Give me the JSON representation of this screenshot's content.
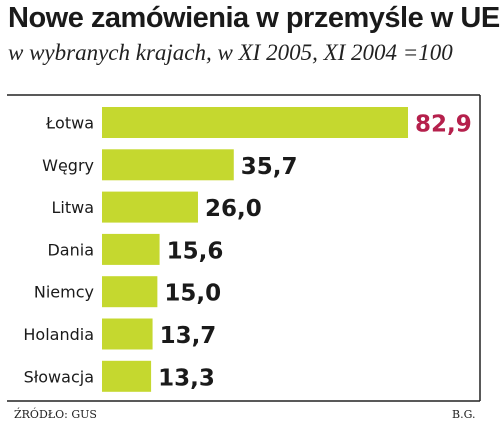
{
  "colors": {
    "bar": "#c5d82f",
    "highlight_value": "#b5204c",
    "value_text": "#1a1a1a",
    "label_text": "#1a1a1a",
    "frame": "#222222"
  },
  "chart_data": {
    "type": "bar",
    "orientation": "horizontal",
    "title": "Nowe zamówienia w przemyśle w UE",
    "subtitle": "w wybranych krajach, w XI 2005, XI 2004 =100",
    "categories": [
      "Łotwa",
      "Węgry",
      "Litwa",
      "Dania",
      "Niemcy",
      "Holandia",
      "Słowacja"
    ],
    "values": [
      82.9,
      35.7,
      26.0,
      15.6,
      15.0,
      13.7,
      13.3
    ],
    "value_labels": [
      "82,9",
      "35,7",
      "26,0",
      "15,6",
      "15,0",
      "13,7",
      "13,3"
    ],
    "highlight_index": 0,
    "xlim": [
      0,
      82.9
    ],
    "grid": false,
    "legend": "none"
  },
  "footer": {
    "source": "ŹRÓDŁO: GUS",
    "author": "B.G."
  }
}
